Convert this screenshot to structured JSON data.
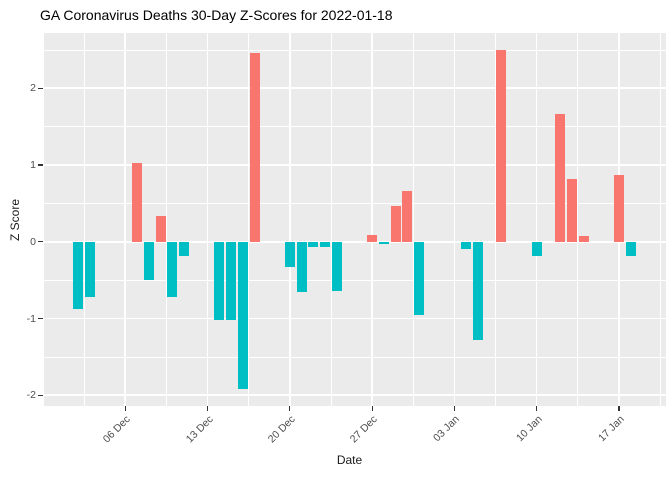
{
  "title": "GA Coronavirus Deaths 30-Day Z-Scores for 2022-01-18",
  "chart_data": {
    "type": "bar",
    "title": "GA Coronavirus Deaths 30-Day Z-Scores for 2022-01-18",
    "xlabel": "Date",
    "ylabel": "Z Score",
    "legend_position": "none",
    "grid": "major+minor, white on grey panel",
    "x_domain": [
      "2021-11-29",
      "2022-01-21"
    ],
    "y_domain": [
      -2.14,
      2.72
    ],
    "bar_width_days": 0.85,
    "x_ticks": [
      {
        "date": "2021-12-06",
        "label": "06 Dec"
      },
      {
        "date": "2021-12-13",
        "label": "13 Dec"
      },
      {
        "date": "2021-12-20",
        "label": "20 Dec"
      },
      {
        "date": "2021-12-27",
        "label": "27 Dec"
      },
      {
        "date": "2022-01-03",
        "label": "03 Jan"
      },
      {
        "date": "2022-01-10",
        "label": "10 Jan"
      },
      {
        "date": "2022-01-17",
        "label": "17 Jan"
      }
    ],
    "y_ticks": [
      {
        "value": 2,
        "label": "2"
      },
      {
        "value": 1,
        "label": "1"
      },
      {
        "value": 0,
        "label": "0"
      },
      {
        "value": -1,
        "label": "-1"
      },
      {
        "value": -2,
        "label": "-2"
      }
    ],
    "colors": {
      "positive": "#F8766D",
      "negative": "#00BFC4",
      "panel_bg": "#EBEBEB",
      "grid": "#FFFFFF",
      "axis_text": "#4D4D4D",
      "axis_title": "#1A1A1A",
      "title_text": "#000000"
    },
    "bars": [
      {
        "date": "2021-12-02",
        "value": -0.88
      },
      {
        "date": "2021-12-03",
        "value": -0.72
      },
      {
        "date": "2021-12-07",
        "value": 1.03
      },
      {
        "date": "2021-12-08",
        "value": -0.5
      },
      {
        "date": "2021-12-09",
        "value": 0.34
      },
      {
        "date": "2021-12-10",
        "value": -0.72
      },
      {
        "date": "2021-12-11",
        "value": -0.19
      },
      {
        "date": "2021-12-14",
        "value": -1.02
      },
      {
        "date": "2021-12-15",
        "value": -1.02
      },
      {
        "date": "2021-12-16",
        "value": -1.92
      },
      {
        "date": "2021-12-17",
        "value": 2.46
      },
      {
        "date": "2021-12-20",
        "value": -0.33
      },
      {
        "date": "2021-12-21",
        "value": -0.65
      },
      {
        "date": "2021-12-22",
        "value": -0.07
      },
      {
        "date": "2021-12-23",
        "value": -0.07
      },
      {
        "date": "2021-12-24",
        "value": -0.64
      },
      {
        "date": "2021-12-27",
        "value": 0.09
      },
      {
        "date": "2021-12-28",
        "value": -0.03
      },
      {
        "date": "2021-12-29",
        "value": 0.46
      },
      {
        "date": "2021-12-30",
        "value": 0.66
      },
      {
        "date": "2021-12-31",
        "value": -0.95
      },
      {
        "date": "2022-01-04",
        "value": -0.09
      },
      {
        "date": "2022-01-05",
        "value": -1.28
      },
      {
        "date": "2022-01-07",
        "value": 2.5
      },
      {
        "date": "2022-01-10",
        "value": -0.18
      },
      {
        "date": "2022-01-12",
        "value": 1.67
      },
      {
        "date": "2022-01-13",
        "value": 0.82
      },
      {
        "date": "2022-01-14",
        "value": 0.08
      },
      {
        "date": "2022-01-17",
        "value": 0.87
      },
      {
        "date": "2022-01-18",
        "value": -0.18
      }
    ]
  }
}
